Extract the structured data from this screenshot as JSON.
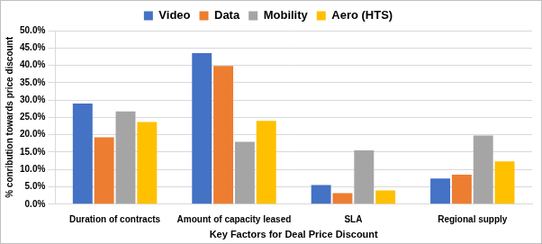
{
  "chart_data": {
    "type": "bar",
    "x_label": "Key Factors for Deal Price Discount",
    "y_label": "% conribution towards price discount",
    "categories": [
      "Duration of contracts",
      "Amount of capacity leased",
      "SLA",
      "Regional supply"
    ],
    "series": [
      {
        "name": "Video",
        "color": "#4472c4",
        "values": [
          29.0,
          43.5,
          5.5,
          7.4
        ]
      },
      {
        "name": "Data",
        "color": "#ed7d31",
        "values": [
          19.3,
          39.8,
          3.2,
          8.5
        ]
      },
      {
        "name": "Mobility",
        "color": "#a5a5a5",
        "values": [
          26.7,
          18.0,
          15.5,
          19.8
        ]
      },
      {
        "name": "Aero (HTS)",
        "color": "#ffc000",
        "values": [
          23.7,
          24.0,
          4.0,
          12.3
        ]
      }
    ],
    "ylim": [
      0,
      50
    ],
    "yticks": [
      {
        "value": 0,
        "label": "0.0%"
      },
      {
        "value": 5,
        "label": "5.0%"
      },
      {
        "value": 10,
        "label": "10.0%"
      },
      {
        "value": 15,
        "label": "15.0%"
      },
      {
        "value": 20,
        "label": "20.0%"
      },
      {
        "value": 25,
        "label": "25.0%"
      },
      {
        "value": 30,
        "label": "30.0%"
      },
      {
        "value": 35,
        "label": "35.0%"
      },
      {
        "value": 40,
        "label": "40.0%"
      },
      {
        "value": 45,
        "label": "45.0%"
      },
      {
        "value": 50,
        "label": "50.0%"
      }
    ],
    "grid": true,
    "legend": "top"
  }
}
